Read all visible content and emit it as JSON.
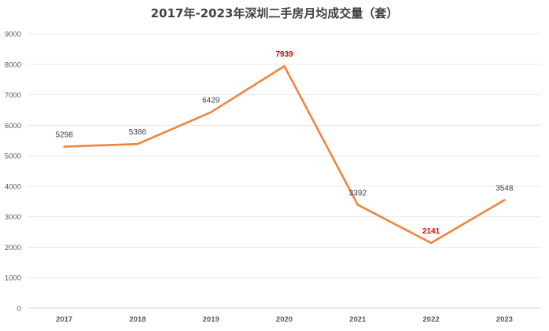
{
  "chart_data": {
    "type": "line",
    "title": "2017年-2023年深圳二手房月均成交量（套）",
    "categories": [
      "2017",
      "2018",
      "2019",
      "2020",
      "2021",
      "2022",
      "2023"
    ],
    "series": [
      {
        "values": [
          5298,
          5386,
          6429,
          7939,
          3392,
          2141,
          3548
        ]
      }
    ],
    "data_labels": [
      "5298",
      "5386",
      "6429",
      "7939",
      "3392",
      "2141",
      "3548"
    ],
    "highlighted_labels": [
      "7939",
      "2141"
    ],
    "ylim": [
      0,
      9000
    ],
    "yticks": [
      "0",
      "1000",
      "2000",
      "3000",
      "4000",
      "5000",
      "6000",
      "7000",
      "8000",
      "9000"
    ],
    "xlabel": "",
    "ylabel": "",
    "grid": true,
    "legend": "none",
    "colors": {
      "line": "#f0853a",
      "highlight_label": "#e00000"
    }
  }
}
